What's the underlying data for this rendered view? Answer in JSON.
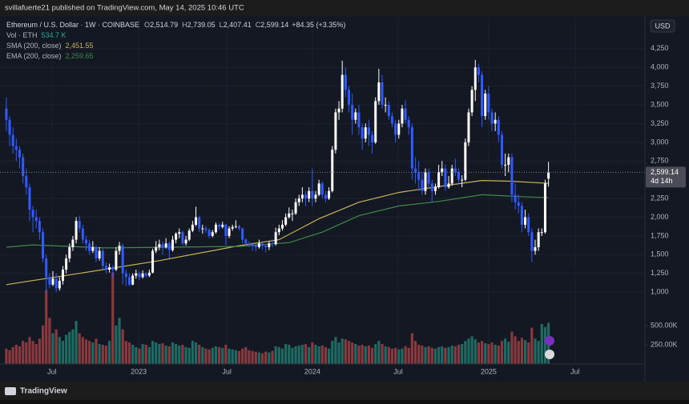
{
  "page": {
    "publisher_line": "svillafuerte21 published on TradingView.com, May 14, 2025 10:46 UTC",
    "brand": "TradingView"
  },
  "chart_data": {
    "type": "candlestick",
    "symbol": "Ethereum / U.S. Dollar · 1W · COINBASE",
    "ohlc_legend": {
      "labels": [
        "O",
        "H",
        "L",
        "C"
      ],
      "values": [
        "2,514.79",
        "2,739.05",
        "2,407.41",
        "2,599.14"
      ],
      "change": "+84.35 (+3.35%)"
    },
    "currency": "USD",
    "last_price_label": "2,599.14",
    "countdown": "4d 14h",
    "up_color": "#ffffff",
    "down_color": "#2f5bff",
    "volume_up_color": "#1d6b63",
    "volume_down_color": "#8a3a3e",
    "grid": true,
    "xlim": [
      -1.9,
      192
    ],
    "xticks": [
      {
        "value": 13.7,
        "label": "Jul"
      },
      {
        "value": 39.8,
        "label": "2023"
      },
      {
        "value": 66.3,
        "label": "Jul"
      },
      {
        "value": 92,
        "label": "2024"
      },
      {
        "value": 117.8,
        "label": "Jul"
      },
      {
        "value": 145,
        "label": "2025"
      },
      {
        "value": 171,
        "label": "Jul"
      }
    ],
    "ylim": [
      40,
      4665
    ],
    "yticks": [
      {
        "value": 1000,
        "label": "1,000"
      },
      {
        "value": 1250,
        "label": "1,250"
      },
      {
        "value": 1500,
        "label": "1,500"
      },
      {
        "value": 1750,
        "label": "1,750"
      },
      {
        "value": 2000,
        "label": "2,000"
      },
      {
        "value": 2250,
        "label": "2,250"
      },
      {
        "value": 2750,
        "label": "2,750"
      },
      {
        "value": 3000,
        "label": "3,000"
      },
      {
        "value": 3250,
        "label": "3,250"
      },
      {
        "value": 3500,
        "label": "3,500"
      },
      {
        "value": 3750,
        "label": "3,750"
      },
      {
        "value": 4000,
        "label": "4,000"
      },
      {
        "value": 4250,
        "label": "4,250"
      }
    ],
    "volume_ylim": [
      0,
      4500000
    ],
    "volume_ticks": [
      {
        "value": 250000,
        "label": "250.00K"
      },
      {
        "value": 500000,
        "label": "500.00K"
      }
    ],
    "volume_legend": {
      "name": "Vol · ETH",
      "value_label": "534.7 K"
    },
    "candles": [
      [
        3450,
        3600,
        3150,
        3300
      ],
      [
        3300,
        3350,
        2950,
        3100
      ],
      [
        3100,
        3200,
        2850,
        2950
      ],
      [
        2950,
        3050,
        2750,
        2900
      ],
      [
        2900,
        2950,
        2650,
        2800
      ],
      [
        2800,
        2850,
        2450,
        2550
      ],
      [
        2550,
        2650,
        2300,
        2400
      ],
      [
        2400,
        2450,
        1950,
        2100
      ],
      [
        2100,
        2150,
        1800,
        2000
      ],
      [
        2000,
        2100,
        1850,
        1950
      ],
      [
        1950,
        2000,
        1700,
        1800
      ],
      [
        1800,
        1850,
        1400,
        1450
      ],
      [
        1450,
        1500,
        1000,
        1200
      ],
      [
        1200,
        1250,
        1050,
        1100
      ],
      [
        1100,
        1280,
        1080,
        1180
      ],
      [
        1180,
        1250,
        1000,
        1050
      ],
      [
        1050,
        1200,
        1020,
        1150
      ],
      [
        1150,
        1350,
        1100,
        1300
      ],
      [
        1300,
        1500,
        1250,
        1450
      ],
      [
        1450,
        1650,
        1400,
        1600
      ],
      [
        1600,
        1750,
        1550,
        1700
      ],
      [
        1700,
        2000,
        1650,
        1950
      ],
      [
        1950,
        2020,
        1800,
        1850
      ],
      [
        1850,
        1900,
        1650,
        1700
      ],
      [
        1700,
        1750,
        1550,
        1650
      ],
      [
        1650,
        1700,
        1500,
        1550
      ],
      [
        1550,
        1680,
        1520,
        1600
      ],
      [
        1600,
        1620,
        1400,
        1450
      ],
      [
        1450,
        1600,
        1420,
        1550
      ],
      [
        1550,
        1580,
        1300,
        1350
      ],
      [
        1350,
        1400,
        1250,
        1300
      ],
      [
        1300,
        1380,
        1260,
        1330
      ],
      [
        1330,
        1360,
        1200,
        1300
      ],
      [
        1300,
        1600,
        1280,
        1550
      ],
      [
        1550,
        1670,
        1500,
        1620
      ],
      [
        1620,
        1650,
        1100,
        1250
      ],
      [
        1250,
        1300,
        1080,
        1200
      ],
      [
        1200,
        1250,
        1080,
        1100
      ],
      [
        1100,
        1250,
        1090,
        1220
      ],
      [
        1220,
        1300,
        1180,
        1250
      ],
      [
        1250,
        1280,
        1160,
        1200
      ],
      [
        1200,
        1290,
        1180,
        1250
      ],
      [
        1250,
        1270,
        1190,
        1220
      ],
      [
        1220,
        1300,
        1200,
        1260
      ],
      [
        1260,
        1580,
        1250,
        1550
      ],
      [
        1550,
        1680,
        1520,
        1600
      ],
      [
        1600,
        1700,
        1560,
        1640
      ],
      [
        1640,
        1680,
        1500,
        1600
      ],
      [
        1600,
        1720,
        1580,
        1650
      ],
      [
        1650,
        1680,
        1450,
        1560
      ],
      [
        1560,
        1750,
        1540,
        1700
      ],
      [
        1700,
        1800,
        1650,
        1780
      ],
      [
        1780,
        1850,
        1720,
        1800
      ],
      [
        1800,
        1820,
        1620,
        1650
      ],
      [
        1650,
        1750,
        1620,
        1700
      ],
      [
        1700,
        1850,
        1680,
        1820
      ],
      [
        1820,
        1950,
        1800,
        1900
      ],
      [
        1900,
        2140,
        1880,
        2000
      ],
      [
        2000,
        2020,
        1800,
        1850
      ],
      [
        1850,
        1900,
        1780,
        1850
      ],
      [
        1850,
        1880,
        1790,
        1830
      ],
      [
        1830,
        1850,
        1720,
        1750
      ],
      [
        1750,
        1830,
        1730,
        1800
      ],
      [
        1800,
        1930,
        1780,
        1900
      ],
      [
        1900,
        1920,
        1830,
        1870
      ],
      [
        1870,
        1940,
        1850,
        1900
      ],
      [
        1900,
        1910,
        1630,
        1750
      ],
      [
        1750,
        1880,
        1720,
        1850
      ],
      [
        1850,
        1900,
        1820,
        1870
      ],
      [
        1870,
        1960,
        1850,
        1880
      ],
      [
        1880,
        1900,
        1820,
        1850
      ],
      [
        1850,
        1860,
        1650,
        1700
      ],
      [
        1700,
        1720,
        1620,
        1650
      ],
      [
        1650,
        1680,
        1600,
        1640
      ],
      [
        1640,
        1660,
        1550,
        1620
      ],
      [
        1620,
        1650,
        1540,
        1600
      ],
      [
        1600,
        1700,
        1580,
        1650
      ],
      [
        1650,
        1680,
        1570,
        1620
      ],
      [
        1620,
        1640,
        1530,
        1600
      ],
      [
        1600,
        1680,
        1560,
        1650
      ],
      [
        1650,
        1700,
        1600,
        1640
      ],
      [
        1640,
        1860,
        1620,
        1800
      ],
      [
        1800,
        1900,
        1760,
        1850
      ],
      [
        1850,
        1960,
        1820,
        1900
      ],
      [
        1900,
        2050,
        1880,
        2000
      ],
      [
        2000,
        2130,
        1980,
        2050
      ],
      [
        2050,
        2100,
        1950,
        2050
      ],
      [
        2050,
        2250,
        2030,
        2200
      ],
      [
        2200,
        2300,
        2150,
        2250
      ],
      [
        2250,
        2400,
        2200,
        2300
      ],
      [
        2300,
        2350,
        2150,
        2250
      ],
      [
        2250,
        2400,
        2200,
        2350
      ],
      [
        2350,
        2650,
        2150,
        2250
      ],
      [
        2250,
        2350,
        2200,
        2300
      ],
      [
        2300,
        2500,
        2280,
        2450
      ],
      [
        2450,
        2480,
        2250,
        2300
      ],
      [
        2300,
        2350,
        2200,
        2250
      ],
      [
        2250,
        2400,
        2230,
        2350
      ],
      [
        2350,
        2950,
        2330,
        2900
      ],
      [
        2900,
        3450,
        2850,
        3400
      ],
      [
        3400,
        3550,
        3300,
        3450
      ],
      [
        3450,
        4090,
        3400,
        3900
      ],
      [
        3900,
        4000,
        3600,
        3700
      ],
      [
        3700,
        3750,
        3400,
        3500
      ],
      [
        3500,
        3650,
        3100,
        3300
      ],
      [
        3300,
        3450,
        3250,
        3400
      ],
      [
        3400,
        3500,
        3100,
        3200
      ],
      [
        3200,
        3250,
        2900,
        3050
      ],
      [
        3050,
        3250,
        3000,
        3200
      ],
      [
        3200,
        3300,
        2950,
        3100
      ],
      [
        3100,
        3150,
        2850,
        3000
      ],
      [
        3000,
        3600,
        2980,
        3550
      ],
      [
        3550,
        3980,
        3500,
        3800
      ],
      [
        3800,
        3900,
        3450,
        3500
      ],
      [
        3500,
        3600,
        3400,
        3500
      ],
      [
        3500,
        3550,
        3300,
        3350
      ],
      [
        3350,
        3400,
        3200,
        3250
      ],
      [
        3250,
        3300,
        3000,
        3100
      ],
      [
        3100,
        3300,
        3050,
        3250
      ],
      [
        3250,
        3500,
        3200,
        3450
      ],
      [
        3450,
        3560,
        3250,
        3300
      ],
      [
        3300,
        3350,
        3100,
        3200
      ],
      [
        3200,
        3250,
        2500,
        2650
      ],
      [
        2650,
        2800,
        2450,
        2600
      ],
      [
        2600,
        2750,
        2350,
        2500
      ],
      [
        2500,
        2600,
        2300,
        2350
      ],
      [
        2350,
        2650,
        2300,
        2600
      ],
      [
        2600,
        2650,
        2400,
        2450
      ],
      [
        2450,
        2500,
        2200,
        2350
      ],
      [
        2350,
        2450,
        2300,
        2400
      ],
      [
        2400,
        2700,
        2380,
        2600
      ],
      [
        2600,
        2750,
        2550,
        2650
      ],
      [
        2650,
        2700,
        2350,
        2400
      ],
      [
        2400,
        2550,
        2380,
        2450
      ],
      [
        2450,
        2700,
        2420,
        2650
      ],
      [
        2650,
        2780,
        2550,
        2600
      ],
      [
        2600,
        2650,
        2450,
        2500
      ],
      [
        2500,
        2560,
        2400,
        2500
      ],
      [
        2500,
        3050,
        2480,
        3000
      ],
      [
        3000,
        3450,
        2950,
        3400
      ],
      [
        3400,
        3750,
        3350,
        3700
      ],
      [
        3700,
        4100,
        3550,
        4000
      ],
      [
        4000,
        4050,
        3800,
        3900
      ],
      [
        3900,
        3950,
        3200,
        3350
      ],
      [
        3350,
        3700,
        3300,
        3650
      ],
      [
        3650,
        3750,
        3300,
        3400
      ],
      [
        3400,
        3450,
        3150,
        3250
      ],
      [
        3250,
        3400,
        3150,
        3300
      ],
      [
        3300,
        3350,
        3000,
        3100
      ],
      [
        3100,
        3150,
        2650,
        2700
      ],
      [
        2700,
        2850,
        2550,
        2700
      ],
      [
        2700,
        2850,
        2600,
        2800
      ],
      [
        2800,
        2850,
        2200,
        2300
      ],
      [
        2300,
        2450,
        2100,
        2200
      ],
      [
        2200,
        2300,
        2050,
        2150
      ],
      [
        2150,
        2200,
        1800,
        1900
      ],
      [
        1900,
        2100,
        1850,
        2000
      ],
      [
        2000,
        2050,
        1750,
        1800
      ],
      [
        1800,
        1850,
        1400,
        1550
      ],
      [
        1550,
        1700,
        1500,
        1600
      ],
      [
        1600,
        1850,
        1550,
        1800
      ],
      [
        1800,
        1850,
        1750,
        1800
      ],
      [
        1800,
        2500,
        1780,
        2450
      ],
      [
        2514.79,
        2739.05,
        2407.41,
        2599.14
      ]
    ],
    "volume": [
      200000,
      180000,
      220000,
      250000,
      230000,
      300000,
      280000,
      350000,
      300000,
      260000,
      330000,
      500000,
      960000,
      600000,
      400000,
      450000,
      350000,
      300000,
      380000,
      420000,
      450000,
      560000,
      400000,
      350000,
      320000,
      300000,
      280000,
      330000,
      260000,
      250000,
      240000,
      300000,
      1190000,
      500000,
      600000,
      450000,
      300000,
      280000,
      250000,
      220000,
      200000,
      260000,
      250000,
      220000,
      300000,
      280000,
      260000,
      270000,
      240000,
      230000,
      280000,
      260000,
      240000,
      250000,
      220000,
      210000,
      300000,
      280000,
      250000,
      220000,
      200000,
      190000,
      210000,
      230000,
      220000,
      210000,
      250000,
      200000,
      190000,
      180000,
      170000,
      200000,
      220000,
      180000,
      170000,
      160000,
      150000,
      140000,
      160000,
      150000,
      170000,
      230000,
      220000,
      200000,
      260000,
      250000,
      210000,
      230000,
      240000,
      250000,
      260000,
      220000,
      280000,
      250000,
      230000,
      240000,
      220000,
      200000,
      300000,
      350000,
      280000,
      330000,
      320000,
      300000,
      280000,
      260000,
      240000,
      250000,
      230000,
      240000,
      210000,
      260000,
      300000,
      260000,
      230000,
      220000,
      200000,
      210000,
      190000,
      200000,
      230000,
      210000,
      400000,
      300000,
      250000,
      240000,
      220000,
      230000,
      210000,
      200000,
      220000,
      230000,
      210000,
      220000,
      240000,
      230000,
      250000,
      260000,
      300000,
      330000,
      360000,
      320000,
      280000,
      300000,
      270000,
      260000,
      280000,
      250000,
      240000,
      300000,
      330000,
      290000,
      420000,
      360000,
      300000,
      340000,
      310000,
      280000,
      470000,
      330000,
      300000,
      520000,
      480000,
      534700
    ],
    "lines": [
      {
        "name": "SMA (200, close)",
        "value_label": "2,451.55",
        "color": "#c8b45a",
        "x": [
          0,
          22,
          46,
          70,
          82,
          94,
          106,
          118,
          130,
          143,
          152,
          163
        ],
        "values": [
          1100,
          1250,
          1420,
          1620,
          1700,
          1980,
          2200,
          2330,
          2410,
          2490,
          2480,
          2451.55
        ]
      },
      {
        "name": "EMA (200, close)",
        "value_label": "2,259.65",
        "color": "#3f8a4a",
        "x": [
          0,
          8,
          30,
          70,
          85,
          95,
          106,
          118,
          130,
          143,
          152,
          163
        ],
        "values": [
          1600,
          1630,
          1590,
          1610,
          1660,
          1800,
          2020,
          2150,
          2210,
          2300,
          2280,
          2259.65
        ]
      }
    ]
  }
}
